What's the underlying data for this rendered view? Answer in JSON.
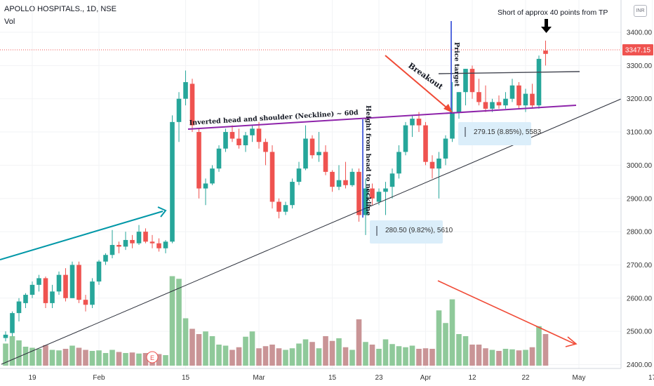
{
  "header": {
    "title": "APOLLO HOSPITALS., 1D, NSE",
    "volume_label": "Vol",
    "currency_badge": "INR"
  },
  "chart_data": {
    "type": "candlestick",
    "ylim": [
      2380,
      3450
    ],
    "y_ticks": [
      2400,
      2500,
      2600,
      2700,
      2800,
      2900,
      3000,
      3100,
      3200,
      3300,
      3400
    ],
    "y_tick_labels": [
      "2400.00",
      "2500.00",
      "2600.00",
      "2700.00",
      "2800.00",
      "2900.00",
      "3000.00",
      "3100.00",
      "3200.00",
      "3300.00",
      "3400.00"
    ],
    "x_ticks": [
      {
        "label": "19",
        "index": 4
      },
      {
        "label": "Feb",
        "index": 14
      },
      {
        "label": "15",
        "index": 27
      },
      {
        "label": "Mar",
        "index": 38
      },
      {
        "label": "15",
        "index": 49
      },
      {
        "label": "23",
        "index": 56
      },
      {
        "label": "Apr",
        "index": 63
      },
      {
        "label": "12",
        "index": 70
      },
      {
        "label": "22",
        "index": 78
      },
      {
        "label": "May",
        "index": 86
      },
      {
        "label": "17",
        "index": 97
      }
    ],
    "last_price": "3347.15",
    "colors": {
      "up": "#26a69a",
      "down": "#ef5350",
      "vol_up": "#8fc99a",
      "vol_down": "#c99496",
      "neckline": "#8e24aa",
      "teal_trend": "#0097a7",
      "blue_line": "#1e3ad3",
      "red_arrow": "#f04a36"
    },
    "candles": [
      {
        "o": 2480,
        "h": 2500,
        "l": 2470,
        "c": 2490,
        "v": 420
      },
      {
        "o": 2495,
        "h": 2560,
        "l": 2485,
        "c": 2555,
        "v": 560
      },
      {
        "o": 2555,
        "h": 2600,
        "l": 2530,
        "c": 2590,
        "v": 480
      },
      {
        "o": 2585,
        "h": 2615,
        "l": 2570,
        "c": 2610,
        "v": 360
      },
      {
        "o": 2610,
        "h": 2650,
        "l": 2600,
        "c": 2640,
        "v": 340
      },
      {
        "o": 2640,
        "h": 2670,
        "l": 2620,
        "c": 2660,
        "v": 320
      },
      {
        "o": 2660,
        "h": 2665,
        "l": 2570,
        "c": 2585,
        "v": 390
      },
      {
        "o": 2585,
        "h": 2640,
        "l": 2570,
        "c": 2620,
        "v": 300
      },
      {
        "o": 2620,
        "h": 2680,
        "l": 2610,
        "c": 2670,
        "v": 290
      },
      {
        "o": 2670,
        "h": 2690,
        "l": 2590,
        "c": 2600,
        "v": 320
      },
      {
        "o": 2600,
        "h": 2710,
        "l": 2600,
        "c": 2700,
        "v": 380
      },
      {
        "o": 2700,
        "h": 2710,
        "l": 2585,
        "c": 2595,
        "v": 340
      },
      {
        "o": 2595,
        "h": 2610,
        "l": 2560,
        "c": 2580,
        "v": 300
      },
      {
        "o": 2580,
        "h": 2660,
        "l": 2570,
        "c": 2650,
        "v": 280
      },
      {
        "o": 2650,
        "h": 2715,
        "l": 2640,
        "c": 2710,
        "v": 290
      },
      {
        "o": 2710,
        "h": 2735,
        "l": 2700,
        "c": 2730,
        "v": 240
      },
      {
        "o": 2730,
        "h": 2805,
        "l": 2720,
        "c": 2760,
        "v": 300
      },
      {
        "o": 2760,
        "h": 2770,
        "l": 2735,
        "c": 2755,
        "v": 260
      },
      {
        "o": 2755,
        "h": 2800,
        "l": 2745,
        "c": 2775,
        "v": 240
      },
      {
        "o": 2775,
        "h": 2790,
        "l": 2750,
        "c": 2765,
        "v": 250
      },
      {
        "o": 2765,
        "h": 2820,
        "l": 2760,
        "c": 2800,
        "v": 230
      },
      {
        "o": 2800,
        "h": 2810,
        "l": 2765,
        "c": 2770,
        "v": 240
      },
      {
        "o": 2770,
        "h": 2790,
        "l": 2750,
        "c": 2765,
        "v": 210
      },
      {
        "o": 2765,
        "h": 2780,
        "l": 2740,
        "c": 2750,
        "v": 220
      },
      {
        "o": 2750,
        "h": 2775,
        "l": 2735,
        "c": 2770,
        "v": 200
      },
      {
        "o": 2770,
        "h": 3150,
        "l": 2765,
        "c": 3130,
        "v": 1700
      },
      {
        "o": 3130,
        "h": 3220,
        "l": 3070,
        "c": 3200,
        "v": 1650
      },
      {
        "o": 3200,
        "h": 3285,
        "l": 3180,
        "c": 3250,
        "v": 900
      },
      {
        "o": 3245,
        "h": 3260,
        "l": 3100,
        "c": 3120,
        "v": 700
      },
      {
        "o": 3100,
        "h": 3110,
        "l": 2900,
        "c": 2930,
        "v": 600
      },
      {
        "o": 2930,
        "h": 2960,
        "l": 2880,
        "c": 2945,
        "v": 650
      },
      {
        "o": 2945,
        "h": 3000,
        "l": 2940,
        "c": 2990,
        "v": 560
      },
      {
        "o": 2990,
        "h": 3060,
        "l": 2980,
        "c": 3050,
        "v": 400
      },
      {
        "o": 3050,
        "h": 3110,
        "l": 3040,
        "c": 3100,
        "v": 380
      },
      {
        "o": 3100,
        "h": 3120,
        "l": 3070,
        "c": 3080,
        "v": 300
      },
      {
        "o": 3080,
        "h": 3110,
        "l": 3050,
        "c": 3060,
        "v": 350
      },
      {
        "o": 3060,
        "h": 3100,
        "l": 3040,
        "c": 3090,
        "v": 550
      },
      {
        "o": 3090,
        "h": 3120,
        "l": 3070,
        "c": 3110,
        "v": 650
      },
      {
        "o": 3110,
        "h": 3130,
        "l": 3050,
        "c": 3070,
        "v": 330
      },
      {
        "o": 3070,
        "h": 3080,
        "l": 3000,
        "c": 3040,
        "v": 370
      },
      {
        "o": 3040,
        "h": 3060,
        "l": 2870,
        "c": 2890,
        "v": 400
      },
      {
        "o": 2890,
        "h": 2900,
        "l": 2840,
        "c": 2860,
        "v": 330
      },
      {
        "o": 2860,
        "h": 2890,
        "l": 2850,
        "c": 2880,
        "v": 300
      },
      {
        "o": 2880,
        "h": 2960,
        "l": 2870,
        "c": 2950,
        "v": 330
      },
      {
        "o": 2950,
        "h": 3010,
        "l": 2940,
        "c": 2990,
        "v": 420
      },
      {
        "o": 2990,
        "h": 3120,
        "l": 2985,
        "c": 3080,
        "v": 500
      },
      {
        "o": 3080,
        "h": 3090,
        "l": 3020,
        "c": 3030,
        "v": 450
      },
      {
        "o": 3030,
        "h": 3100,
        "l": 3010,
        "c": 3040,
        "v": 330
      },
      {
        "o": 3040,
        "h": 3060,
        "l": 2970,
        "c": 2980,
        "v": 560
      },
      {
        "o": 2980,
        "h": 2985,
        "l": 2920,
        "c": 2935,
        "v": 470
      },
      {
        "o": 2935,
        "h": 3000,
        "l": 2925,
        "c": 2955,
        "v": 520
      },
      {
        "o": 2955,
        "h": 3010,
        "l": 2930,
        "c": 2940,
        "v": 350
      },
      {
        "o": 2940,
        "h": 2990,
        "l": 2935,
        "c": 2980,
        "v": 300
      },
      {
        "o": 2980,
        "h": 2990,
        "l": 2830,
        "c": 2850,
        "v": 880
      },
      {
        "o": 2850,
        "h": 2960,
        "l": 2790,
        "c": 2930,
        "v": 450
      },
      {
        "o": 2930,
        "h": 2945,
        "l": 2880,
        "c": 2900,
        "v": 400
      },
      {
        "o": 2890,
        "h": 2930,
        "l": 2880,
        "c": 2920,
        "v": 320
      },
      {
        "o": 2920,
        "h": 2950,
        "l": 2850,
        "c": 2930,
        "v": 500
      },
      {
        "o": 2935,
        "h": 2990,
        "l": 2900,
        "c": 2975,
        "v": 410
      },
      {
        "o": 2975,
        "h": 3060,
        "l": 2960,
        "c": 3040,
        "v": 370
      },
      {
        "o": 3040,
        "h": 3130,
        "l": 3030,
        "c": 3120,
        "v": 350
      },
      {
        "o": 3120,
        "h": 3150,
        "l": 3085,
        "c": 3140,
        "v": 380
      },
      {
        "o": 3140,
        "h": 3160,
        "l": 3100,
        "c": 3120,
        "v": 320
      },
      {
        "o": 3120,
        "h": 3130,
        "l": 3000,
        "c": 3010,
        "v": 330
      },
      {
        "o": 3010,
        "h": 3030,
        "l": 2960,
        "c": 2990,
        "v": 320
      },
      {
        "o": 2990,
        "h": 3040,
        "l": 2900,
        "c": 3020,
        "v": 1050
      },
      {
        "o": 3020,
        "h": 3090,
        "l": 3000,
        "c": 3080,
        "v": 810
      },
      {
        "o": 3080,
        "h": 3250,
        "l": 3070,
        "c": 3160,
        "v": 1260
      },
      {
        "o": 3160,
        "h": 3220,
        "l": 3140,
        "c": 3220,
        "v": 600
      },
      {
        "o": 3220,
        "h": 3290,
        "l": 3180,
        "c": 3290,
        "v": 560
      },
      {
        "o": 3290,
        "h": 3300,
        "l": 3200,
        "c": 3220,
        "v": 400
      },
      {
        "o": 3220,
        "h": 3260,
        "l": 3180,
        "c": 3190,
        "v": 400
      },
      {
        "o": 3190,
        "h": 3240,
        "l": 3160,
        "c": 3170,
        "v": 330
      },
      {
        "o": 3170,
        "h": 3200,
        "l": 3160,
        "c": 3190,
        "v": 300
      },
      {
        "o": 3190,
        "h": 3210,
        "l": 3170,
        "c": 3180,
        "v": 280
      },
      {
        "o": 3180,
        "h": 3220,
        "l": 3170,
        "c": 3200,
        "v": 320
      },
      {
        "o": 3200,
        "h": 3260,
        "l": 3190,
        "c": 3240,
        "v": 310
      },
      {
        "o": 3240,
        "h": 3250,
        "l": 3170,
        "c": 3180,
        "v": 290
      },
      {
        "o": 3180,
        "h": 3230,
        "l": 3160,
        "c": 3215,
        "v": 300
      },
      {
        "o": 3215,
        "h": 3245,
        "l": 3170,
        "c": 3180,
        "v": 350
      },
      {
        "o": 3180,
        "h": 3330,
        "l": 3170,
        "c": 3320,
        "v": 750
      },
      {
        "o": 3345,
        "h": 3375,
        "l": 3300,
        "c": 3335,
        "v": 600
      }
    ],
    "annotations": {
      "neckline_label": "Inverted head and shoulder (Neckline) ~ 60d",
      "height_label": "Height from head to neckline",
      "price_target_label": "Price target",
      "breakout_label": "Breakout",
      "tp_note": "Short of approx 40 points from TP",
      "measure1": "280.50 (9.82%), 5610",
      "measure2": "279.15 (8.85%), 5583",
      "earnings_badge": "E"
    }
  }
}
